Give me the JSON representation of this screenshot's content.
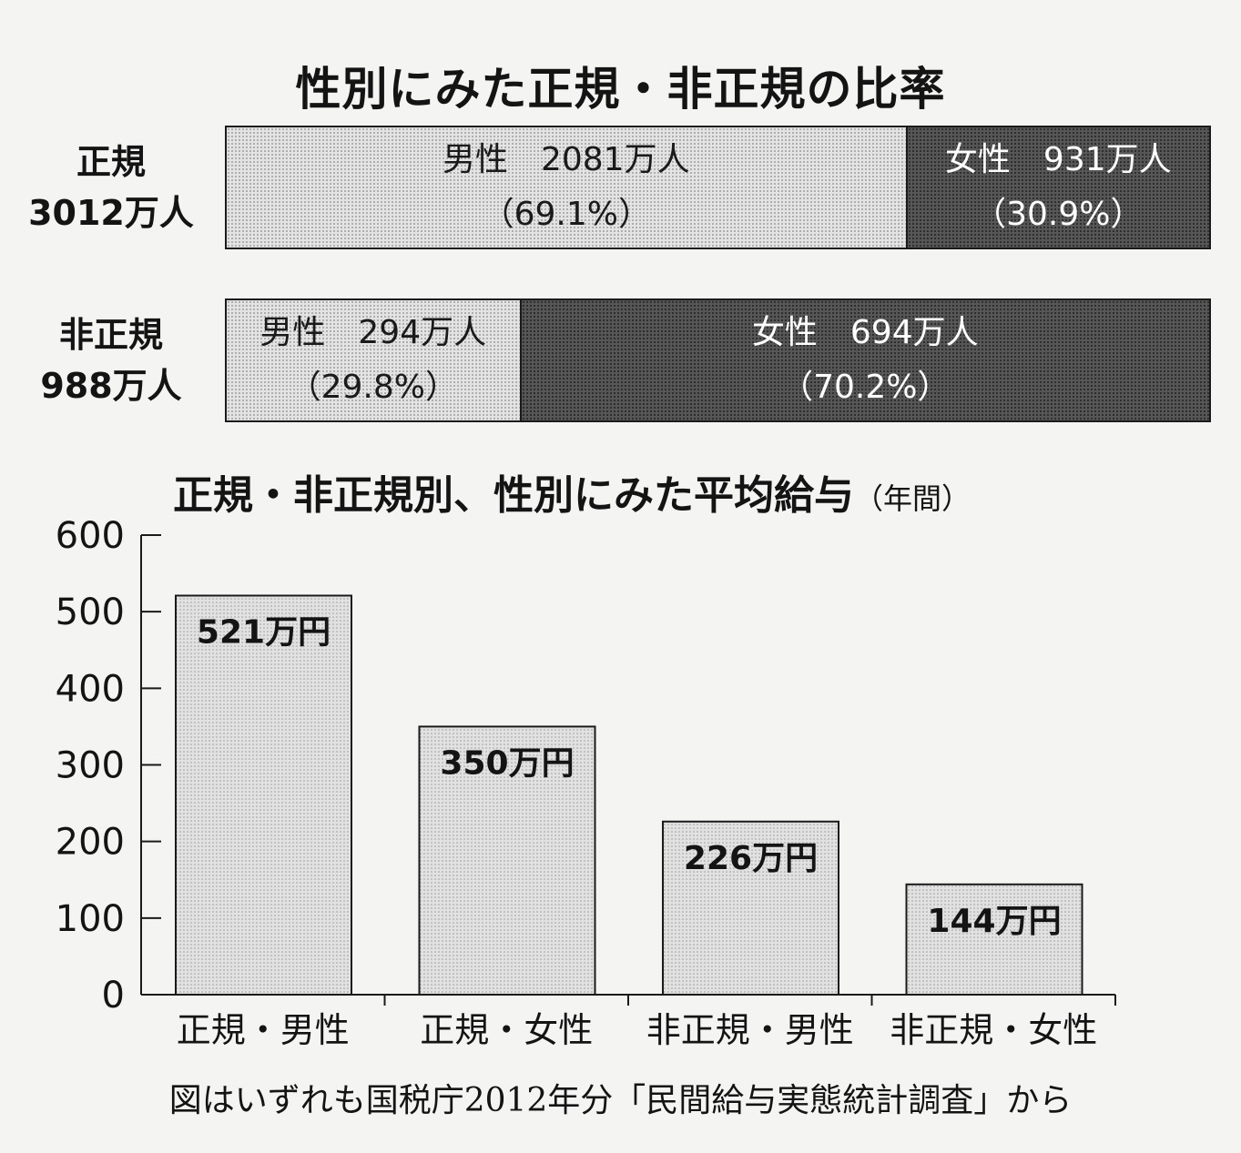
{
  "top_chart": {
    "title": "性別にみた正規・非正規の比率",
    "rows": [
      {
        "label_line1": "正規",
        "label_line2": "3012万人",
        "male": {
          "label": "男性　2081万人",
          "pct_label": "（69.1%）",
          "share": 69.1
        },
        "female": {
          "label": "女性　931万人",
          "pct_label": "（30.9%）",
          "share": 30.9
        }
      },
      {
        "label_line1": "非正規",
        "label_line2": "988万人",
        "male": {
          "label": "男性　294万人",
          "pct_label": "（29.8%）",
          "share": 29.8
        },
        "female": {
          "label": "女性　694万人",
          "pct_label": "（70.2%）",
          "share": 70.2
        }
      }
    ]
  },
  "bar_chart_title": {
    "main": "正規・非正規別、性別にみた平均給与",
    "unit": "（年間）"
  },
  "chart_data": {
    "type": "bar",
    "categories": [
      "正規・男性",
      "正規・女性",
      "非正規・男性",
      "非正規・女性"
    ],
    "values": [
      521,
      350,
      226,
      144
    ],
    "data_labels": [
      "521万円",
      "350万円",
      "226万円",
      "144万円"
    ],
    "title": "正規・非正規別、性別にみた平均給与",
    "ylim": [
      0,
      600
    ],
    "yticks": [
      0,
      100,
      200,
      300,
      400,
      500,
      600
    ],
    "grid": false
  },
  "source": "図はいずれも国税庁2012年分「民間給与実態統計調査」から",
  "colors": {
    "light_fill": "#e3e3e3",
    "dark_fill": "#575757",
    "axis": "#1a1a1a"
  }
}
